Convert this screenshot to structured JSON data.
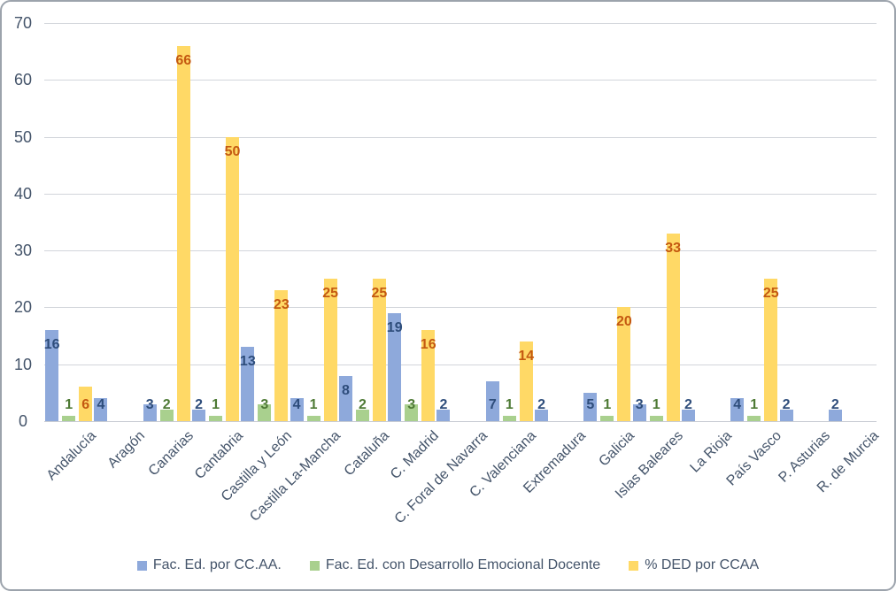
{
  "chart_data": {
    "type": "bar",
    "title": "",
    "categories": [
      "Andalucía",
      "Aragón",
      "Canarias",
      "Cantabria",
      "Castilla y León",
      "Castilla La-Mancha",
      "Cataluña",
      "C. Madrid",
      "C. Foral de Navarra",
      "C. Valenciana",
      "Extremadura",
      "Galicia",
      "Islas Baleares",
      "La Rioja",
      "País Vasco",
      "P. Asturias",
      "R. de Murcia"
    ],
    "series": [
      {
        "name": "Fac. Ed. por CC.AA.",
        "color": "#8EA9DB",
        "label_color": "#2E4D7B",
        "values": [
          16,
          4,
          3,
          2,
          13,
          4,
          8,
          19,
          2,
          7,
          2,
          5,
          3,
          2,
          4,
          2,
          2
        ]
      },
      {
        "name": "Fac. Ed. con Desarrollo Emocional Docente",
        "color": "#A9D08E",
        "label_color": "#4E7A35",
        "values": [
          1,
          null,
          2,
          1,
          3,
          1,
          2,
          3,
          null,
          1,
          null,
          1,
          1,
          null,
          1,
          null,
          null
        ]
      },
      {
        "name": "% DED por CCAA",
        "color": "#FFD966",
        "label_color": "#C45911",
        "values": [
          6,
          null,
          66,
          50,
          23,
          25,
          25,
          16,
          null,
          14,
          null,
          20,
          33,
          null,
          25,
          null,
          null
        ]
      }
    ],
    "ylim": [
      0,
      70
    ],
    "yticks": [
      0,
      10,
      20,
      30,
      40,
      50,
      60,
      70
    ],
    "grid": true,
    "data_labels": true,
    "legend_position": "bottom"
  },
  "axes": {
    "tick_color": "#44546A",
    "grid_color": "#D2D5DB",
    "axis_line_color": "#C8CCD3"
  },
  "frame": {
    "background": "#FFFFFF",
    "border_color": "#9CA3AC"
  }
}
